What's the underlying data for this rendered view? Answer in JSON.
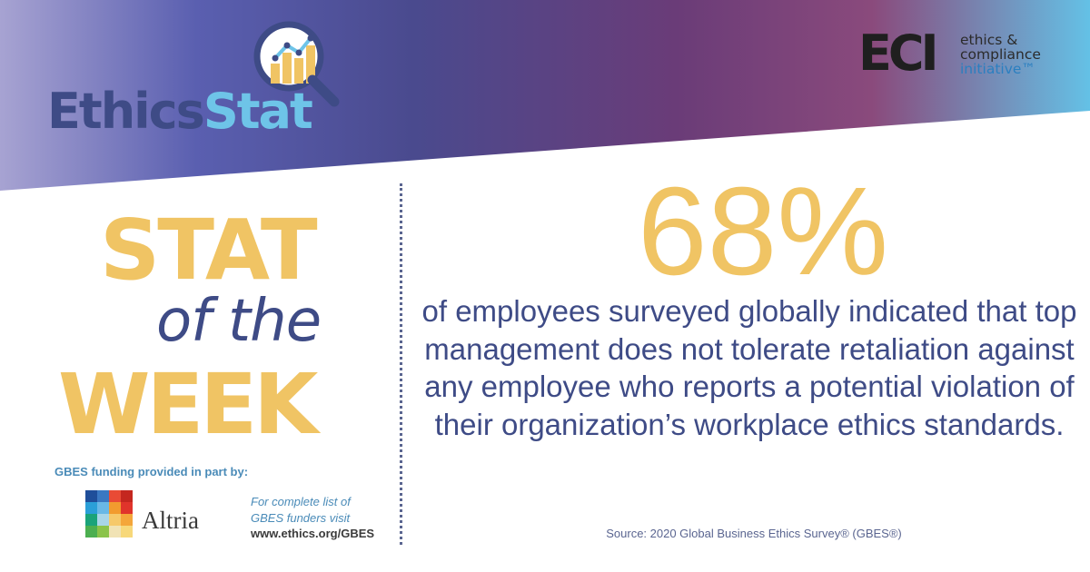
{
  "branding": {
    "ethicsstat_word1": "Ethics",
    "ethicsstat_word2": "Stat",
    "eci_mark": "ECI",
    "eci_tagline": [
      "ethics &",
      "compliance",
      "initiative™"
    ]
  },
  "headline": {
    "line1": "STAT",
    "line2": "of the",
    "line3": "WEEK"
  },
  "stat": {
    "value": "68%",
    "description": "of employees surveyed globally indicated that top management does not tolerate retaliation against any employee who reports a potential violation of their organization’s workplace ethics standards.",
    "source": "Source: 2020 Global Business Ethics Survey® (GBES®)"
  },
  "funding": {
    "label": "GBES funding provided in part by:",
    "sponsor": "Altria",
    "note_line1": "For complete list of",
    "note_line2": "GBES funders visit",
    "url": "www.ethics.org/GBES"
  },
  "colors": {
    "navy": "#3e4b86",
    "gold": "#f0c464",
    "sky": "#6ec4e8",
    "link_blue": "#4a8bb8"
  }
}
